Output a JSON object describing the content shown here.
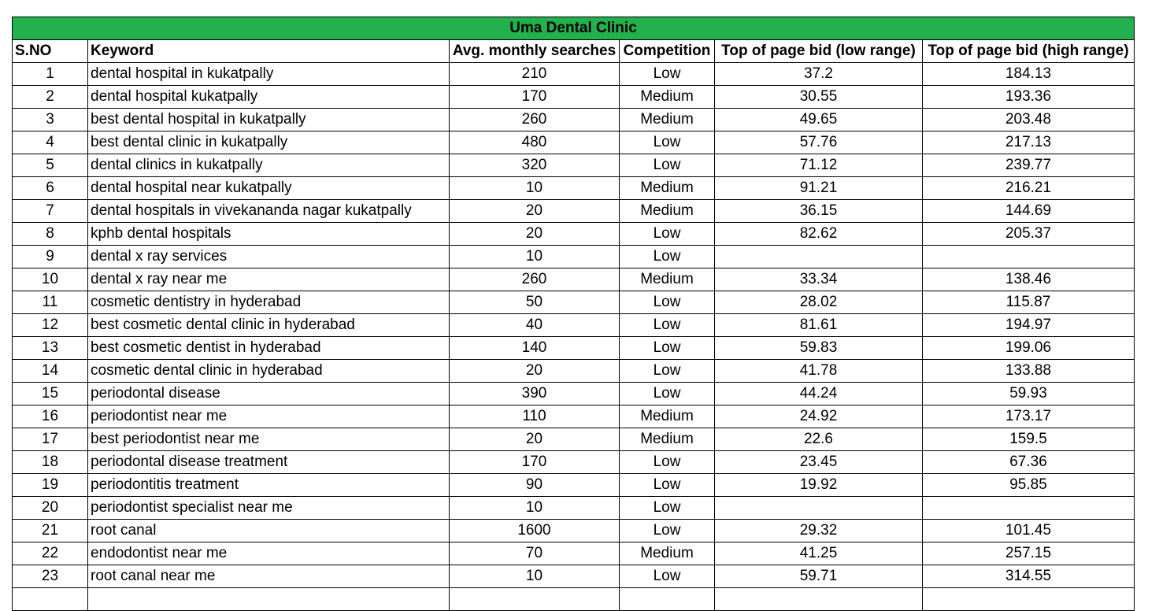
{
  "title": "Uma Dental Clinic",
  "headers": [
    "S.NO",
    "Keyword",
    "Avg. monthly searches",
    "Competition",
    "Top of page bid (low range)",
    "Top of page bid (high range)"
  ],
  "rows": [
    [
      "1",
      "dental hospital in kukatpally",
      "210",
      "Low",
      "37.2",
      "184.13"
    ],
    [
      "2",
      "dental hospital kukatpally",
      "170",
      "Medium",
      "30.55",
      "193.36"
    ],
    [
      "3",
      "best dental hospital in kukatpally",
      "260",
      "Medium",
      "49.65",
      "203.48"
    ],
    [
      "4",
      "best dental clinic in kukatpally",
      "480",
      "Low",
      "57.76",
      "217.13"
    ],
    [
      "5",
      "dental clinics in kukatpally",
      "320",
      "Low",
      "71.12",
      "239.77"
    ],
    [
      "6",
      "dental hospital near kukatpally",
      "10",
      "Medium",
      "91.21",
      "216.21"
    ],
    [
      "7",
      "dental hospitals in vivekananda nagar kukatpally",
      "20",
      "Medium",
      "36.15",
      "144.69"
    ],
    [
      "8",
      "kphb dental hospitals",
      "20",
      "Low",
      "82.62",
      "205.37"
    ],
    [
      "9",
      "dental x ray services",
      "10",
      "Low",
      "",
      ""
    ],
    [
      "10",
      "dental x ray near me",
      "260",
      "Medium",
      "33.34",
      "138.46"
    ],
    [
      "11",
      "cosmetic dentistry in hyderabad",
      "50",
      "Low",
      "28.02",
      "115.87"
    ],
    [
      "12",
      "best cosmetic dental clinic in hyderabad",
      "40",
      "Low",
      "81.61",
      "194.97"
    ],
    [
      "13",
      "best cosmetic dentist in hyderabad",
      "140",
      "Low",
      "59.83",
      "199.06"
    ],
    [
      "14",
      "cosmetic dental clinic in hyderabad",
      "20",
      "Low",
      "41.78",
      "133.88"
    ],
    [
      "15",
      "periodontal disease",
      "390",
      "Low",
      "44.24",
      "59.93"
    ],
    [
      "16",
      "periodontist near me",
      "110",
      "Medium",
      "24.92",
      "173.17"
    ],
    [
      "17",
      "best periodontist near me",
      "20",
      "Medium",
      "22.6",
      "159.5"
    ],
    [
      "18",
      "periodontal disease treatment",
      "170",
      "Low",
      "23.45",
      "67.36"
    ],
    [
      "19",
      "periodontitis treatment",
      "90",
      "Low",
      "19.92",
      "95.85"
    ],
    [
      "20",
      "periodontist specialist near me",
      "10",
      "Low",
      "",
      ""
    ],
    [
      "21",
      "root canal",
      "1600",
      "Low",
      "29.32",
      "101.45"
    ],
    [
      "22",
      "endodontist near me",
      "70",
      "Medium",
      "41.25",
      "257.15"
    ],
    [
      "23",
      "root canal near me",
      "10",
      "Low",
      "59.71",
      "314.55"
    ]
  ],
  "colors": {
    "title_fill": "#22b14c",
    "grid": "#000000"
  }
}
